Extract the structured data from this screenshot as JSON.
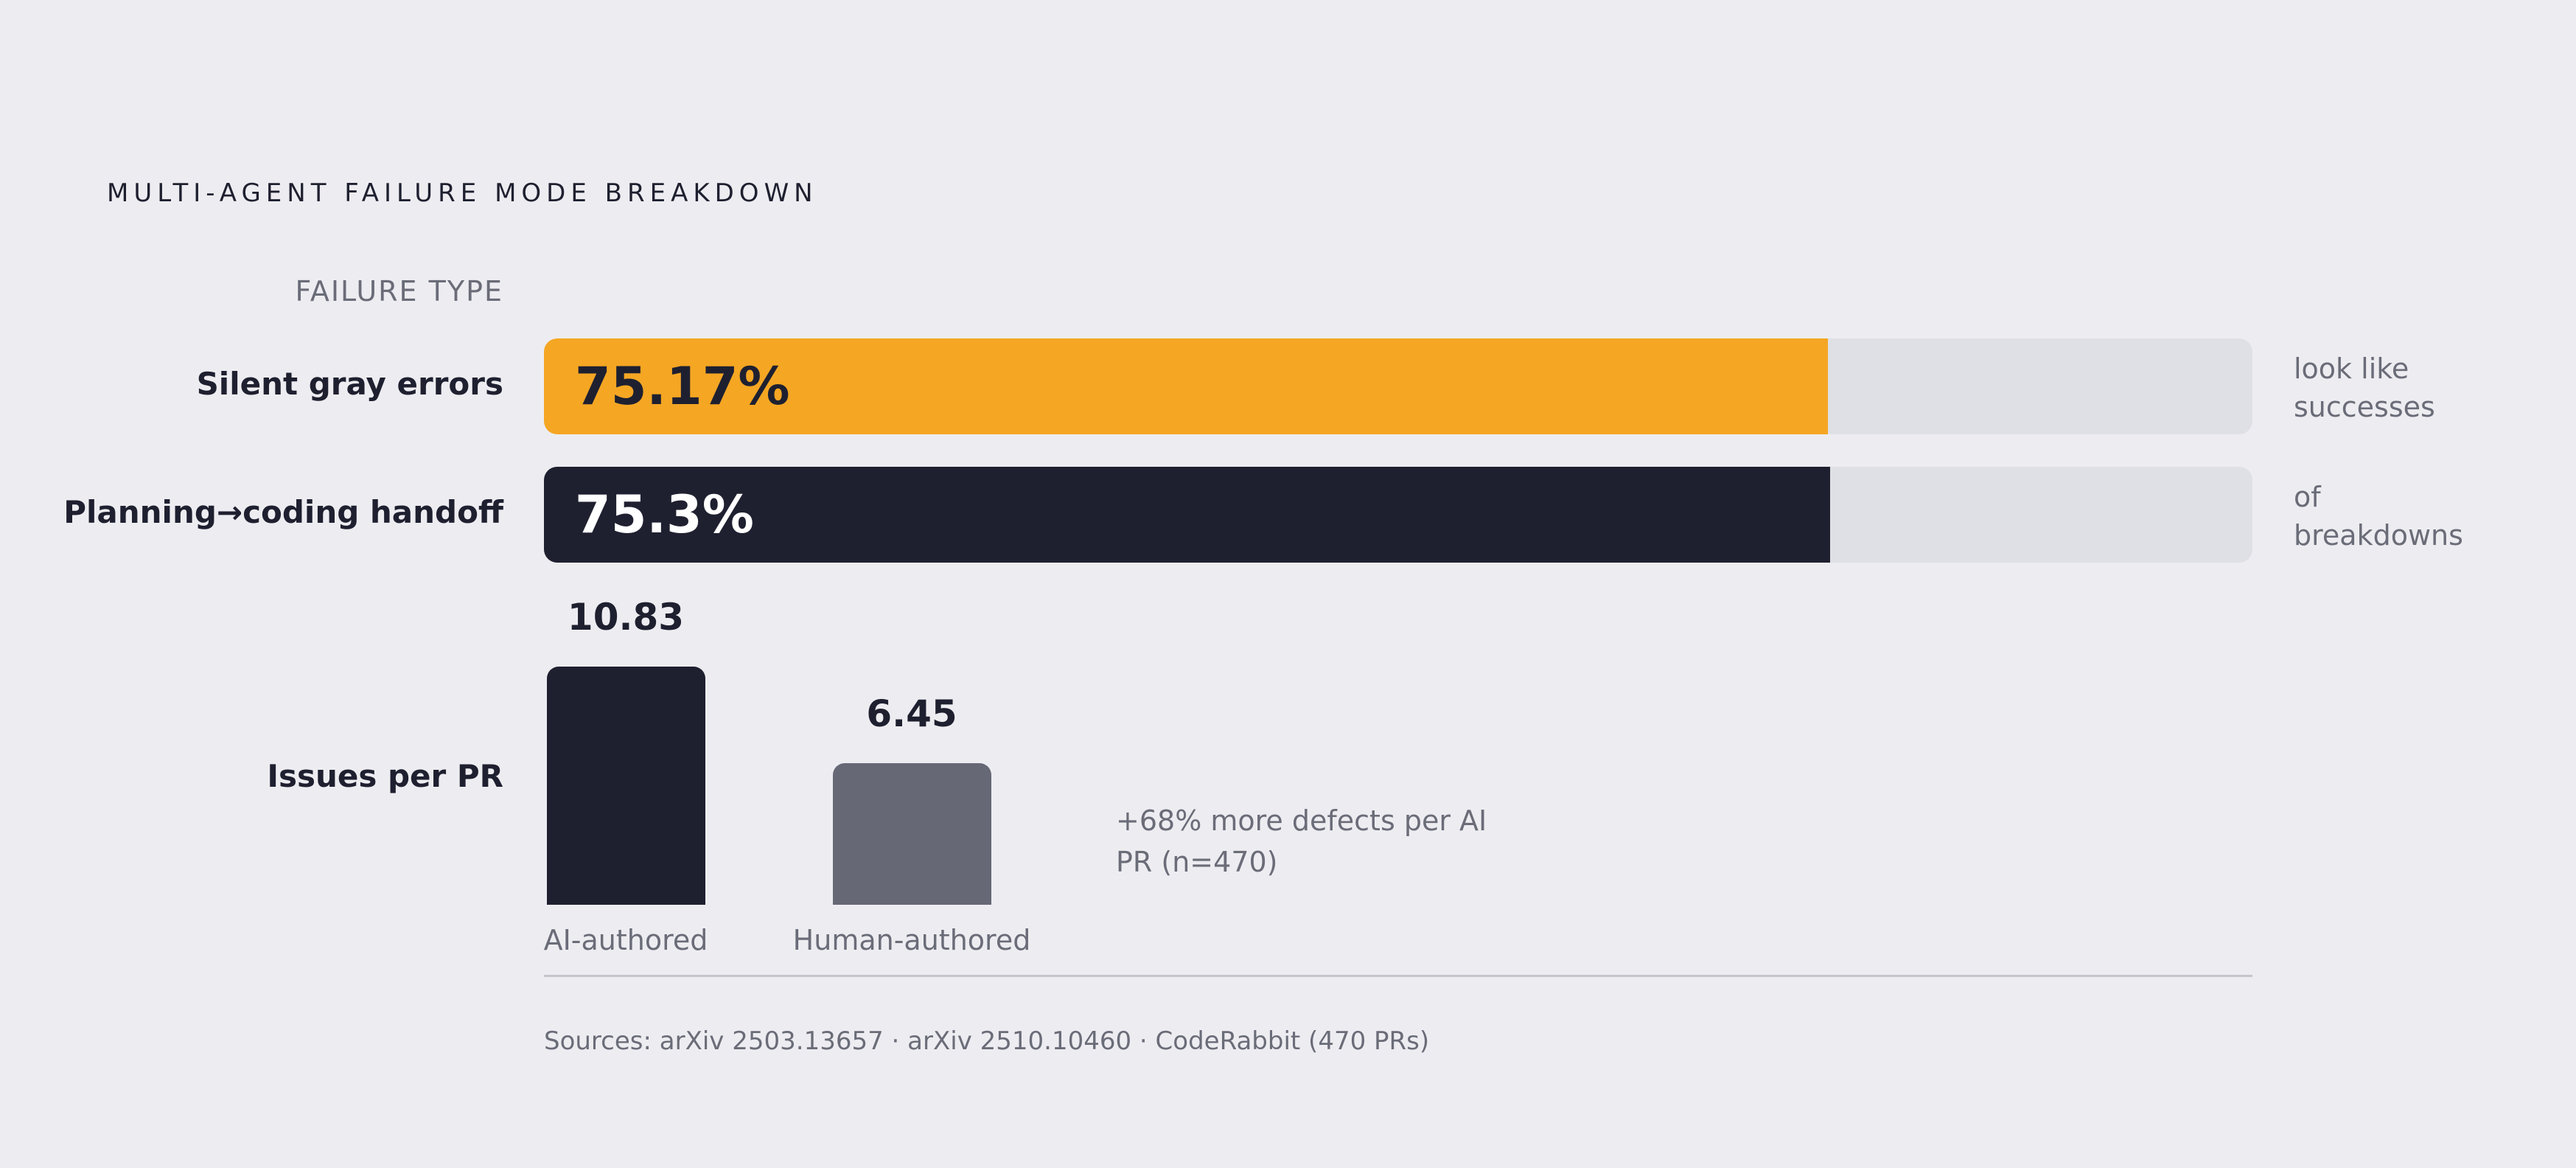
{
  "chart_data": [
    {
      "type": "bar",
      "orientation": "horizontal",
      "title": "MULTI-AGENT FAILURE MODE BREAKDOWN",
      "ylabel": "FAILURE TYPE",
      "xlim": [
        0,
        100
      ],
      "categories": [
        "Silent gray errors",
        "Planning→coding handoff"
      ],
      "values": [
        75.17,
        75.3
      ],
      "value_labels": [
        "75.17%",
        "75.3%"
      ],
      "notes": [
        "look like successes",
        "of breakdowns"
      ],
      "colors": [
        "#f5a623",
        "#1e2030"
      ],
      "label_colors": [
        "#1e2030",
        "#ffffff"
      ]
    },
    {
      "type": "bar",
      "orientation": "vertical",
      "row_label": "Issues per PR",
      "categories": [
        "AI-authored",
        "Human-authored"
      ],
      "values": [
        10.83,
        6.45
      ],
      "value_labels": [
        "10.83",
        "6.45"
      ],
      "colors": [
        "#1e2030",
        "#666876"
      ],
      "annotation": "+68% more defects per AI PR (n=470)"
    }
  ],
  "sources": "Sources: arXiv 2503.13657 · arXiv 2510.10460 · CodeRabbit (470 PRs)",
  "track_color": "#dfe0e5",
  "background": "#ededf1"
}
